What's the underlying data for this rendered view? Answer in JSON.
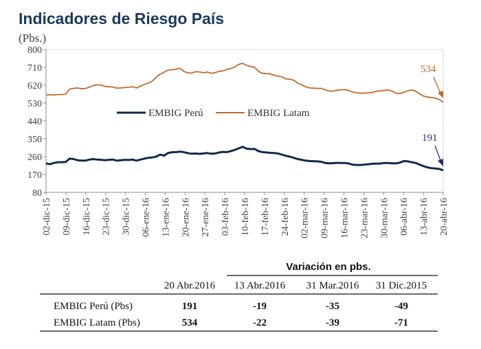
{
  "title": "Indicadores de Riesgo País",
  "unit": "(Pbs.)",
  "chart_data": {
    "type": "line",
    "title": "Indicadores de Riesgo País",
    "ylabel": "(Pbs.)",
    "ylim": [
      80,
      800
    ],
    "yticks": [
      80,
      170,
      260,
      350,
      440,
      530,
      620,
      710,
      800
    ],
    "yticks_labels": [
      "80",
      "170",
      "260",
      "350",
      "440",
      "530",
      "620",
      "710",
      "800"
    ],
    "xticks": [
      "02-dic-15",
      "09-dic-15",
      "16-dic-15",
      "23-dic-15",
      "30-dic-15",
      "06-ene-16",
      "13-ene-16",
      "20-ene-16",
      "27-ene-16",
      "03-feb-16",
      "10-feb-16",
      "17-feb-16",
      "24-feb-16",
      "02-mar-16",
      "09-mar-16",
      "16-mar-16",
      "23-mar-16",
      "30-mar-16",
      "06-abr-16",
      "13-abr-16",
      "20-abr-16"
    ],
    "grid": false,
    "legend_position": "middle",
    "series": [
      {
        "name": "EMBIG Perú",
        "color": "#102a4c",
        "values": [
          226,
          222,
          228,
          232,
          232,
          233,
          250,
          248,
          242,
          240,
          240,
          245,
          248,
          245,
          244,
          242,
          244,
          245,
          240,
          242,
          244,
          243,
          245,
          240,
          245,
          250,
          254,
          256,
          260,
          270,
          265,
          278,
          282,
          283,
          285,
          283,
          278,
          275,
          276,
          274,
          276,
          278,
          275,
          276,
          281,
          284,
          283,
          288,
          294,
          302,
          310,
          300,
          298,
          299,
          288,
          283,
          281,
          279,
          278,
          276,
          270,
          264,
          260,
          254,
          248,
          244,
          240,
          238,
          237,
          236,
          234,
          228,
          226,
          227,
          229,
          228,
          228,
          225,
          219,
          218,
          218,
          220,
          222,
          224,
          225,
          225,
          228,
          228,
          226,
          226,
          230,
          238,
          236,
          232,
          228,
          220,
          212,
          206,
          202,
          200,
          198,
          191
        ]
      },
      {
        "name": "EMBIG Latam",
        "color": "#c0692a",
        "values": [
          570,
          572,
          570,
          573,
          573,
          575,
          600,
          604,
          606,
          602,
          603,
          610,
          618,
          622,
          620,
          614,
          612,
          611,
          605,
          606,
          608,
          610,
          612,
          606,
          615,
          624,
          630,
          640,
          660,
          675,
          685,
          696,
          698,
          700,
          706,
          690,
          682,
          681,
          688,
          687,
          682,
          686,
          680,
          683,
          690,
          692,
          700,
          704,
          712,
          725,
          730,
          720,
          715,
          710,
          690,
          680,
          678,
          677,
          670,
          666,
          662,
          652,
          650,
          645,
          630,
          622,
          612,
          606,
          605,
          604,
          604,
          596,
          590,
          591,
          595,
          596,
          598,
          593,
          585,
          582,
          580,
          580,
          582,
          583,
          590,
          591,
          594,
          596,
          590,
          580,
          578,
          584,
          592,
          596,
          590,
          576,
          565,
          560,
          558,
          555,
          548,
          534
        ]
      }
    ],
    "annotations": [
      {
        "text": "534",
        "value": 534,
        "series": "EMBIG Latam"
      },
      {
        "text": "191",
        "value": 191,
        "series": "EMBIG Perú"
      }
    ]
  },
  "table": {
    "group_header": "Variación en pbs.",
    "columns": [
      "20 Abr.2016",
      "13 Abr.2016",
      "31 Mar.2016",
      "31 Dic.2015"
    ],
    "rows": [
      {
        "label": "EMBIG Perú (Pbs)",
        "values": [
          "191",
          "-19",
          "-35",
          "-49"
        ]
      },
      {
        "label": "EMBIG Latam (Pbs)",
        "values": [
          "534",
          "-22",
          "-39",
          "-71"
        ]
      }
    ]
  }
}
